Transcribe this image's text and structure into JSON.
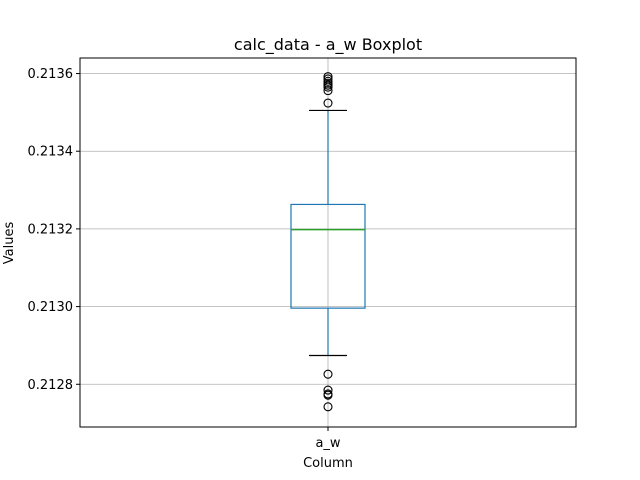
{
  "chart_data": {
    "type": "box",
    "title": "calc_data - a_w Boxplot",
    "xlabel": "Column",
    "ylabel": "Values",
    "categories": [
      "a_w"
    ],
    "ylim": [
      0.21269,
      0.21364
    ],
    "yticks": [
      0.2128,
      0.213,
      0.2132,
      0.2134,
      0.2136
    ],
    "ytick_labels": [
      "0.2128",
      "0.2130",
      "0.2132",
      "0.2134",
      "0.2136"
    ],
    "grid": true,
    "series": [
      {
        "whisker_low": 0.212874,
        "q1": 0.212996,
        "median": 0.213198,
        "q3": 0.213263,
        "whisker_high": 0.213505,
        "outliers": [
          0.212826,
          0.212785,
          0.212775,
          0.212772,
          0.212742,
          0.213524,
          0.213556,
          0.213565,
          0.21357,
          0.213575,
          0.21358,
          0.213586,
          0.213592
        ]
      }
    ],
    "colors": {
      "box": "#1f77b4",
      "whisker": "#1f77b4",
      "median": "#2ca02c",
      "caps": "#000000",
      "outlier": "#000000",
      "grid": "#b0b0b0"
    }
  }
}
